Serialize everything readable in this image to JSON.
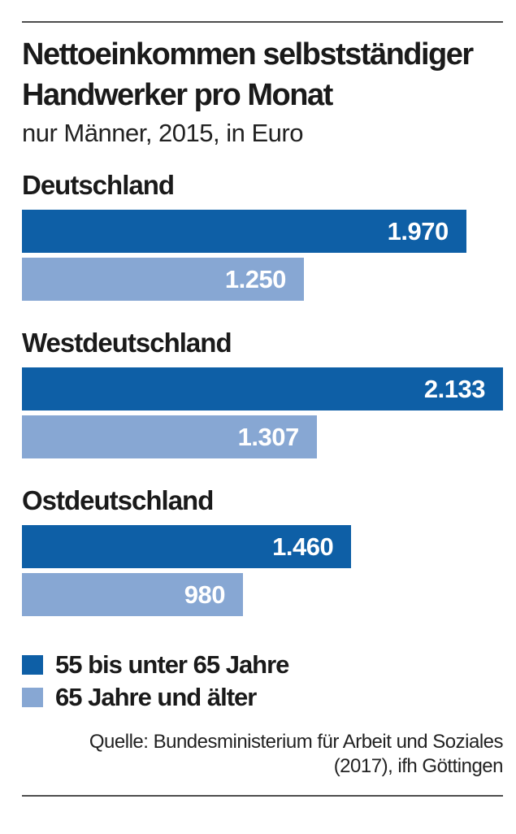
{
  "header": {
    "title": "Nettoeinkommen selbstständiger Handwerker pro Monat",
    "subtitle": "nur Männer, 2015, in Euro"
  },
  "chart_data": {
    "type": "bar",
    "orientation": "horizontal",
    "title": "Nettoeinkommen selbstständiger Handwerker pro Monat",
    "subtitle": "nur Männer, 2015, in Euro",
    "unit": "Euro",
    "categories": [
      "Deutschland",
      "Westdeutschland",
      "Ostdeutschland"
    ],
    "series": [
      {
        "name": "55 bis unter 65 Jahre",
        "color": "#0e5fa6",
        "values": [
          1970,
          2133,
          1460
        ],
        "labels": [
          "1.970",
          "2.133",
          "1.460"
        ]
      },
      {
        "name": "65 Jahre und älter",
        "color": "#87a7d3",
        "values": [
          1250,
          1307,
          980
        ],
        "labels": [
          "1.250",
          "1.307",
          "980"
        ]
      }
    ],
    "xlim": [
      0,
      2133
    ],
    "grid": false,
    "legend_position": "bottom-left",
    "value_labels": "inside-end"
  },
  "legend": {
    "items": [
      {
        "label": "55 bis unter 65 Jahre",
        "color": "#0e5fa6"
      },
      {
        "label": "65 Jahre und älter",
        "color": "#87a7d3"
      }
    ]
  },
  "source": {
    "line1": "Quelle: Bundesministerium für Arbeit und Soziales",
    "line2": "(2017), ifh Göttingen"
  },
  "colors": {
    "bar_dark_blue": "#0e5fa6",
    "bar_light_blue": "#87a7d3",
    "rule_gray": "#4d4d4d",
    "text_black": "#1a1a1a",
    "value_text_white": "#ffffff"
  }
}
